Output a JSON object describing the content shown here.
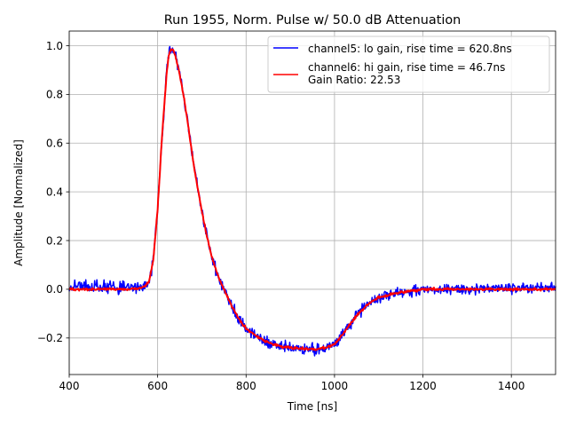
{
  "chart_data": {
    "type": "line",
    "title": "Run 1955, Norm. Pulse w/ 50.0 dB Attenuation",
    "xlabel": "Time [ns]",
    "ylabel": "Amplitude [Normalized]",
    "xlim": [
      400,
      1500
    ],
    "ylim": [
      -0.35,
      1.06
    ],
    "grid": true,
    "legend_position": "top-right",
    "xticks": [
      400,
      600,
      800,
      1000,
      1200,
      1400
    ],
    "xtick_labels": [
      "400",
      "600",
      "800",
      "1000",
      "1200",
      "1400"
    ],
    "yticks": [
      -0.2,
      0.0,
      0.2,
      0.4,
      0.6,
      0.8,
      1.0
    ],
    "ytick_labels": [
      "−0.2",
      "0.0",
      "0.2",
      "0.4",
      "0.6",
      "0.8",
      "1.0"
    ],
    "series": [
      {
        "name": "channel5: lo gain, rise time = 620.8ns",
        "color": "#0000ff",
        "noise": 0.022,
        "x": [
          400,
          450,
          500,
          550,
          570,
          580,
          590,
          600,
          610,
          620,
          625,
          630,
          635,
          640,
          650,
          660,
          670,
          680,
          690,
          700,
          710,
          720,
          730,
          740,
          750,
          760,
          770,
          780,
          790,
          800,
          820,
          840,
          860,
          880,
          900,
          920,
          940,
          960,
          980,
          1000,
          1010,
          1020,
          1030,
          1040,
          1050,
          1060,
          1070,
          1080,
          1090,
          1100,
          1120,
          1140,
          1160,
          1180,
          1200,
          1250,
          1300,
          1350,
          1400,
          1450,
          1500
        ],
        "y": [
          0.01,
          0.01,
          0.01,
          0.01,
          0.01,
          0.03,
          0.12,
          0.33,
          0.63,
          0.88,
          0.96,
          0.99,
          0.98,
          0.96,
          0.88,
          0.78,
          0.66,
          0.53,
          0.42,
          0.32,
          0.23,
          0.15,
          0.09,
          0.04,
          0.0,
          -0.04,
          -0.08,
          -0.11,
          -0.14,
          -0.16,
          -0.19,
          -0.21,
          -0.225,
          -0.235,
          -0.24,
          -0.245,
          -0.245,
          -0.245,
          -0.24,
          -0.225,
          -0.205,
          -0.18,
          -0.155,
          -0.13,
          -0.11,
          -0.09,
          -0.07,
          -0.055,
          -0.045,
          -0.035,
          -0.025,
          -0.015,
          -0.01,
          -0.005,
          0.0,
          0.0,
          0.0,
          0.005,
          0.005,
          0.005,
          0.005
        ]
      },
      {
        "name": "channel6: hi gain, rise time = 46.7ns\nGain Ratio: 22.53",
        "color": "#ff0000",
        "noise": 0.005,
        "x": [
          400,
          450,
          500,
          550,
          570,
          580,
          590,
          600,
          610,
          620,
          625,
          630,
          635,
          640,
          650,
          660,
          670,
          680,
          690,
          700,
          710,
          720,
          730,
          740,
          750,
          760,
          770,
          780,
          790,
          800,
          820,
          840,
          860,
          880,
          900,
          920,
          940,
          960,
          980,
          1000,
          1010,
          1020,
          1030,
          1040,
          1050,
          1060,
          1070,
          1080,
          1090,
          1100,
          1120,
          1140,
          1160,
          1180,
          1200,
          1250,
          1300,
          1350,
          1400,
          1450,
          1500
        ],
        "y": [
          0.0,
          0.0,
          0.0,
          0.0,
          0.01,
          0.03,
          0.12,
          0.33,
          0.63,
          0.88,
          0.96,
          0.99,
          0.98,
          0.96,
          0.88,
          0.78,
          0.66,
          0.53,
          0.42,
          0.32,
          0.23,
          0.15,
          0.09,
          0.04,
          0.0,
          -0.04,
          -0.08,
          -0.11,
          -0.14,
          -0.16,
          -0.19,
          -0.21,
          -0.225,
          -0.235,
          -0.24,
          -0.245,
          -0.245,
          -0.245,
          -0.24,
          -0.225,
          -0.205,
          -0.18,
          -0.155,
          -0.13,
          -0.11,
          -0.09,
          -0.07,
          -0.055,
          -0.045,
          -0.035,
          -0.025,
          -0.015,
          -0.01,
          -0.005,
          0.0,
          0.0,
          0.0,
          0.0,
          0.0,
          0.0,
          0.0
        ]
      }
    ]
  }
}
